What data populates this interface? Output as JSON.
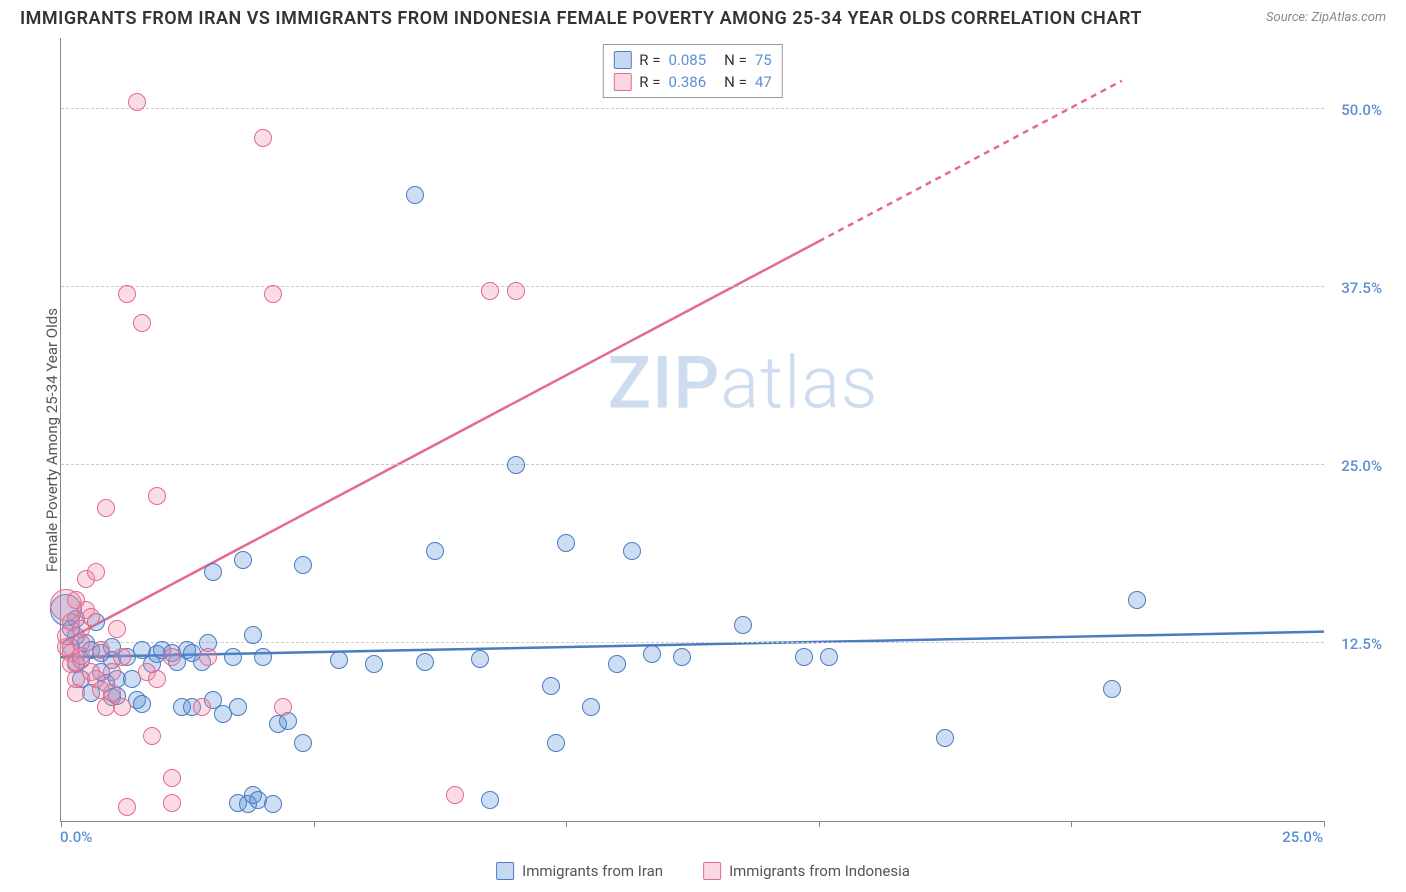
{
  "title": "IMMIGRANTS FROM IRAN VS IMMIGRANTS FROM INDONESIA FEMALE POVERTY AMONG 25-34 YEAR OLDS CORRELATION CHART",
  "source": {
    "label": "Source: ",
    "site": "ZipAtlas.com"
  },
  "watermark_bold": "ZIP",
  "watermark_thin": "atlas",
  "chart": {
    "type": "scatter",
    "y_axis_label": "Female Poverty Among 25-34 Year Olds",
    "xlim": [
      0,
      25
    ],
    "ylim": [
      0,
      55
    ],
    "x_ticks": [
      0,
      5,
      10,
      15,
      20,
      25
    ],
    "x_tick_labels": {
      "0": "0.0%",
      "25": "25.0%"
    },
    "y_grid": [
      12.5,
      25.0,
      37.5,
      50.0
    ],
    "y_tick_labels": [
      "12.5%",
      "25.0%",
      "37.5%",
      "50.0%"
    ],
    "background_color": "#ffffff",
    "grid_color": "#cccccc",
    "axis_color": "#888888",
    "tick_label_color": "#5b8fd6",
    "point_radius": 9,
    "point_stroke_width": 1.5,
    "point_fill_opacity": 0.3,
    "series": [
      {
        "name": "Immigrants from Iran",
        "color": "#5b8fd6",
        "stroke": "#4a7cc2",
        "R": "0.085",
        "N": "75",
        "trend": {
          "x1": 0,
          "y1": 11.5,
          "x2": 25,
          "y2": 13.3,
          "dash_from_x": null
        },
        "points": [
          [
            0.1,
            14.8,
            16
          ],
          [
            0.2,
            12.2
          ],
          [
            0.2,
            13.5
          ],
          [
            0.3,
            11.0
          ],
          [
            0.3,
            13.0
          ],
          [
            0.3,
            14.2
          ],
          [
            0.4,
            10.0
          ],
          [
            0.4,
            11.3
          ],
          [
            0.5,
            12.5
          ],
          [
            0.6,
            9.0
          ],
          [
            0.6,
            12.0
          ],
          [
            0.7,
            14.0
          ],
          [
            0.8,
            10.5
          ],
          [
            0.8,
            11.8
          ],
          [
            0.9,
            9.7
          ],
          [
            1.0,
            12.2
          ],
          [
            1.0,
            11.3
          ],
          [
            1.0,
            8.7
          ],
          [
            1.1,
            10.0
          ],
          [
            1.1,
            8.8
          ],
          [
            1.3,
            11.5
          ],
          [
            1.4,
            10.0
          ],
          [
            1.5,
            8.5
          ],
          [
            1.6,
            12.0
          ],
          [
            1.6,
            8.2
          ],
          [
            1.8,
            11.0
          ],
          [
            1.9,
            11.7
          ],
          [
            2.0,
            12.0
          ],
          [
            2.2,
            11.8
          ],
          [
            2.3,
            11.2
          ],
          [
            2.4,
            8.0
          ],
          [
            2.5,
            12.0
          ],
          [
            2.6,
            8.0
          ],
          [
            2.6,
            11.8
          ],
          [
            2.8,
            11.2
          ],
          [
            2.9,
            12.5
          ],
          [
            3.0,
            17.5
          ],
          [
            3.0,
            8.5
          ],
          [
            3.2,
            7.5
          ],
          [
            3.4,
            11.5
          ],
          [
            3.5,
            8.0
          ],
          [
            3.5,
            1.3
          ],
          [
            3.6,
            18.3
          ],
          [
            3.7,
            1.2
          ],
          [
            3.8,
            1.8
          ],
          [
            3.8,
            13.1
          ],
          [
            3.9,
            1.5
          ],
          [
            4.0,
            11.5
          ],
          [
            4.2,
            1.2
          ],
          [
            4.3,
            6.8
          ],
          [
            4.5,
            7.0
          ],
          [
            4.8,
            5.5
          ],
          [
            4.8,
            18.0
          ],
          [
            5.5,
            11.3
          ],
          [
            6.2,
            11.0
          ],
          [
            7.0,
            44.0
          ],
          [
            7.4,
            19.0
          ],
          [
            8.5,
            1.5
          ],
          [
            9.0,
            25.0
          ],
          [
            9.7,
            9.5
          ],
          [
            9.8,
            5.5
          ],
          [
            10.0,
            19.5
          ],
          [
            10.5,
            8.0
          ],
          [
            11.0,
            11.0
          ],
          [
            11.3,
            19.0
          ],
          [
            11.7,
            11.7
          ],
          [
            12.3,
            11.5
          ],
          [
            13.5,
            13.8
          ],
          [
            14.7,
            11.5
          ],
          [
            15.2,
            11.5
          ],
          [
            17.5,
            5.8
          ],
          [
            20.8,
            9.3
          ],
          [
            21.3,
            15.5
          ],
          [
            7.2,
            11.2
          ],
          [
            8.3,
            11.4
          ]
        ]
      },
      {
        "name": "Immigrants from Indonesia",
        "color": "#f08ca8",
        "stroke": "#e66a8e",
        "R": "0.386",
        "N": "47",
        "trend": {
          "x1": 0,
          "y1": 12.5,
          "x2": 21,
          "y2": 52.0,
          "dash_from_x": 15
        },
        "points": [
          [
            0.1,
            15.2,
            16
          ],
          [
            0.1,
            12.2
          ],
          [
            0.1,
            13.0
          ],
          [
            0.2,
            11.0
          ],
          [
            0.2,
            11.8
          ],
          [
            0.2,
            14.0
          ],
          [
            0.3,
            15.5
          ],
          [
            0.3,
            9.0
          ],
          [
            0.3,
            11.2
          ],
          [
            0.3,
            10.0
          ],
          [
            0.4,
            12.5
          ],
          [
            0.4,
            13.5
          ],
          [
            0.4,
            11.6
          ],
          [
            0.5,
            14.8
          ],
          [
            0.5,
            17.0
          ],
          [
            0.6,
            14.3
          ],
          [
            0.6,
            10.5
          ],
          [
            0.7,
            17.5
          ],
          [
            0.7,
            10.0
          ],
          [
            0.8,
            12.0
          ],
          [
            0.8,
            9.2
          ],
          [
            0.9,
            8.0
          ],
          [
            0.9,
            22.0
          ],
          [
            1.0,
            10.5
          ],
          [
            1.0,
            9.0
          ],
          [
            1.1,
            13.5
          ],
          [
            1.2,
            11.5
          ],
          [
            1.2,
            8.0
          ],
          [
            1.3,
            1.0
          ],
          [
            1.3,
            37.0
          ],
          [
            1.5,
            50.5
          ],
          [
            1.6,
            35.0
          ],
          [
            1.7,
            10.5
          ],
          [
            1.8,
            6.0
          ],
          [
            1.9,
            10.0
          ],
          [
            1.9,
            22.8
          ],
          [
            2.2,
            3.0
          ],
          [
            2.2,
            11.5
          ],
          [
            2.2,
            1.3
          ],
          [
            2.8,
            8.0
          ],
          [
            2.9,
            11.5
          ],
          [
            4.0,
            48.0
          ],
          [
            4.2,
            37.0
          ],
          [
            4.4,
            8.0
          ],
          [
            7.8,
            1.8
          ],
          [
            8.5,
            37.2
          ],
          [
            9.0,
            37.2
          ]
        ]
      }
    ],
    "legend_bottom": [
      {
        "label": "Immigrants from Iran",
        "color": "#5b8fd6",
        "stroke": "#4a7cc2"
      },
      {
        "label": "Immigrants from Indonesia",
        "color": "#f08ca8",
        "stroke": "#e66a8e"
      }
    ]
  }
}
